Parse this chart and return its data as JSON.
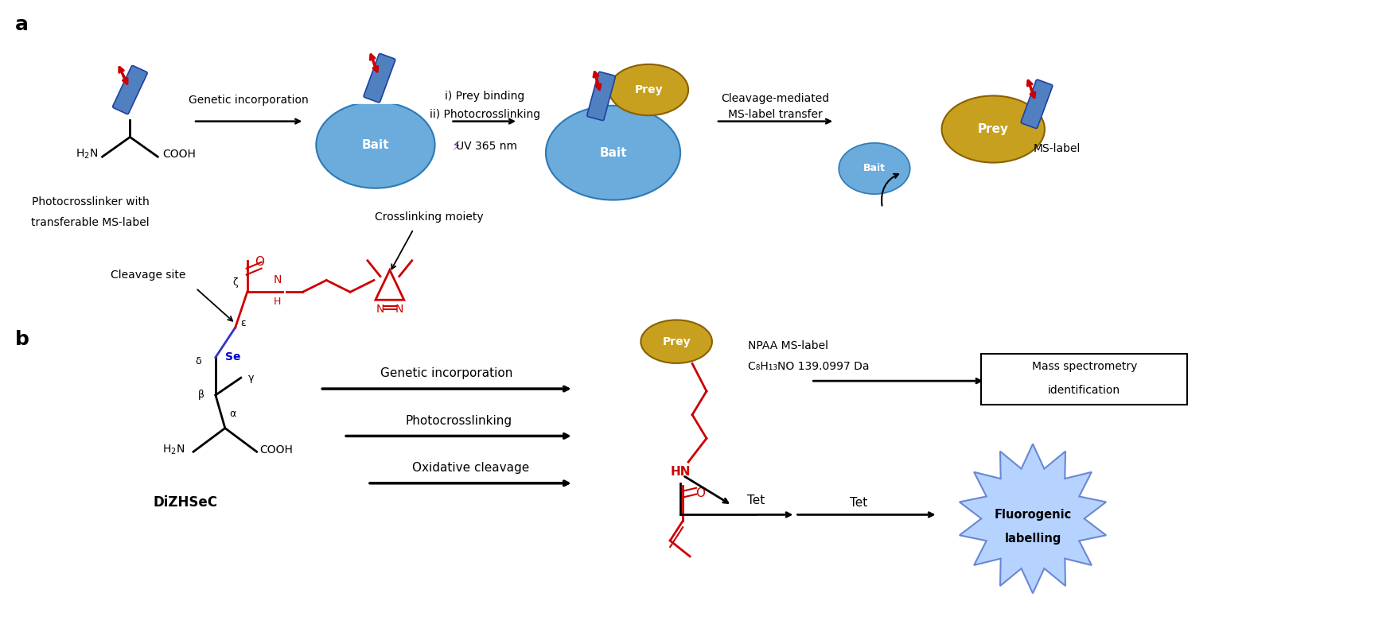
{
  "panel_a_label": "a",
  "panel_b_label": "b",
  "background_color": "#ffffff",
  "text_color": "#000000",
  "red_color": "#cc0000",
  "blue_color": "#4472c4",
  "dark_red": "#cc0000",
  "gold_color": "#c8a020",
  "light_blue": "#5ba3d9",
  "arrow_label1": "Genetic incorporation",
  "arrow_label2_line1": "i) Prey binding",
  "arrow_label2_line2": "ii) Photocrosslinking",
  "arrow_label2_line3": "UV 365 nm",
  "arrow_label3_line1": "Cleavage-mediated",
  "arrow_label3_line2": "MS-label transfer",
  "bait_label": "Bait",
  "prey_label": "Prey",
  "ms_label": "MS-label",
  "photocrosslinker_line1": "Photocrosslinker with",
  "photocrosslinker_line2": "transferable MS-label",
  "b_genetic": "Genetic incorporation",
  "b_photo": "Photocrosslinking",
  "b_oxidative": "Oxidative cleavage",
  "b_cleavage": "Cleavage site",
  "b_crosslinking": "Crosslinking moiety",
  "b_tet": "Tet",
  "b_fluorogenic_line1": "Fluorogenic",
  "b_fluorogenic_line2": "labelling",
  "b_mass_line1": "Mass spectrometry",
  "b_mass_line2": "identification",
  "b_npaa_line1": "NPAA MS-label",
  "b_npaa_line2": "C₈H₁₃NO 139.0997 Da",
  "b_dizhsec": "DiZHSeC"
}
